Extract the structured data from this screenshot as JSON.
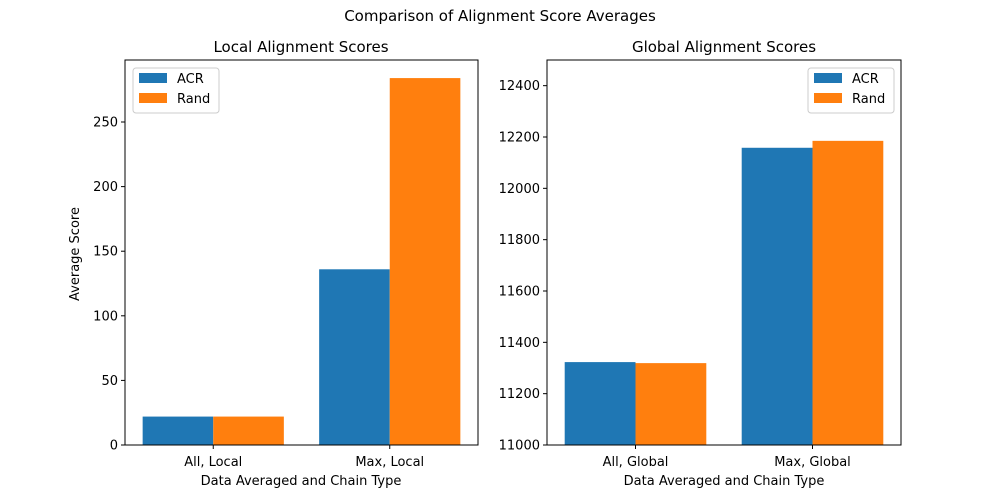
{
  "figure": {
    "suptitle": "Comparison of Alignment Score Averages"
  },
  "chart_data": [
    {
      "type": "bar",
      "title": "Local Alignment Scores",
      "xlabel": "Data Averaged and Chain Type",
      "ylabel": "Average Score",
      "categories": [
        "All, Local",
        "Max, Local"
      ],
      "series": [
        {
          "name": "ACR",
          "values": [
            22,
            136
          ],
          "color": "#1f77b4"
        },
        {
          "name": "Rand",
          "values": [
            22,
            284
          ],
          "color": "#ff7f0e"
        }
      ],
      "ylim": [
        0,
        298
      ],
      "yticks": [
        0,
        50,
        100,
        150,
        200,
        250
      ],
      "legend": "top-left",
      "grid": false
    },
    {
      "type": "bar",
      "title": "Global Alignment Scores",
      "xlabel": "Data Averaged and Chain Type",
      "ylabel": "",
      "categories": [
        "All, Global",
        "Max, Global"
      ],
      "series": [
        {
          "name": "ACR",
          "values": [
            11323,
            12158
          ],
          "color": "#1f77b4"
        },
        {
          "name": "Rand",
          "values": [
            11319,
            12185
          ],
          "color": "#ff7f0e"
        }
      ],
      "ylim": [
        11000,
        12500
      ],
      "yticks": [
        11000,
        11200,
        11400,
        11600,
        11800,
        12000,
        12200,
        12400
      ],
      "legend": "top-right",
      "grid": false
    }
  ]
}
